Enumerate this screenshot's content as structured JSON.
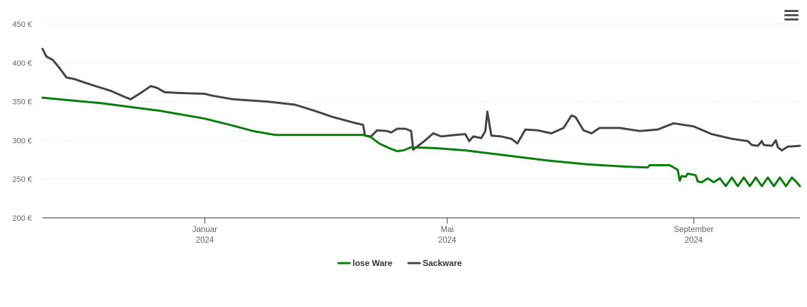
{
  "menu": {
    "icon": "hamburger-menu-icon"
  },
  "chart_data": {
    "type": "line",
    "title": "",
    "xlabel": "",
    "ylabel": "",
    "ylim": [
      200,
      450
    ],
    "y_ticks": [
      "200 €",
      "250 €",
      "300 €",
      "350 €",
      "400 €",
      "450 €"
    ],
    "y_tick_values": [
      200,
      250,
      300,
      350,
      400,
      450
    ],
    "x_range": [
      "2023-10-12",
      "2024-10-24"
    ],
    "x_ticks": [
      {
        "date": "2024-01-01",
        "label1": "Januar",
        "label2": "2024"
      },
      {
        "date": "2024-05-01",
        "label1": "Mai",
        "label2": "2024"
      },
      {
        "date": "2024-09-01",
        "label1": "September",
        "label2": "2024"
      }
    ],
    "grid": true,
    "legend": "bottom-center",
    "series": [
      {
        "name": "lose Ware",
        "color": "#0a7d0a",
        "points": [
          [
            "2023-10-12",
            355
          ],
          [
            "2023-11-10",
            348
          ],
          [
            "2023-12-10",
            338
          ],
          [
            "2024-01-01",
            328
          ],
          [
            "2024-01-15",
            319
          ],
          [
            "2024-01-25",
            312
          ],
          [
            "2024-02-05",
            307
          ],
          [
            "2024-02-25",
            307
          ],
          [
            "2024-03-10",
            307
          ],
          [
            "2024-03-20",
            307
          ],
          [
            "2024-03-24",
            304
          ],
          [
            "2024-03-28",
            296
          ],
          [
            "2024-04-02",
            290
          ],
          [
            "2024-04-06",
            286
          ],
          [
            "2024-04-09",
            287
          ],
          [
            "2024-04-13",
            291
          ],
          [
            "2024-04-25",
            290
          ],
          [
            "2024-05-10",
            287
          ],
          [
            "2024-06-01",
            280
          ],
          [
            "2024-06-20",
            274
          ],
          [
            "2024-07-10",
            269
          ],
          [
            "2024-07-30",
            266
          ],
          [
            "2024-08-09",
            265
          ],
          [
            "2024-08-10",
            268
          ],
          [
            "2024-08-20",
            268
          ],
          [
            "2024-08-24",
            262
          ],
          [
            "2024-08-25",
            248
          ],
          [
            "2024-08-26",
            254
          ],
          [
            "2024-08-28",
            253
          ],
          [
            "2024-08-29",
            257
          ],
          [
            "2024-09-02",
            255
          ],
          [
            "2024-09-03",
            247
          ],
          [
            "2024-09-05",
            246
          ],
          [
            "2024-09-08",
            251
          ],
          [
            "2024-09-11",
            246
          ],
          [
            "2024-09-14",
            251
          ],
          [
            "2024-09-17",
            241
          ],
          [
            "2024-09-20",
            252
          ],
          [
            "2024-09-23",
            241
          ],
          [
            "2024-09-26",
            252
          ],
          [
            "2024-09-29",
            241
          ],
          [
            "2024-10-02",
            252
          ],
          [
            "2024-10-05",
            241
          ],
          [
            "2024-10-08",
            252
          ],
          [
            "2024-10-11",
            241
          ],
          [
            "2024-10-14",
            252
          ],
          [
            "2024-10-17",
            241
          ],
          [
            "2024-10-20",
            252
          ],
          [
            "2024-10-22",
            247
          ],
          [
            "2024-10-24",
            241
          ]
        ]
      },
      {
        "name": "Sackware",
        "color": "#444444",
        "points": [
          [
            "2023-10-12",
            418
          ],
          [
            "2023-10-14",
            408
          ],
          [
            "2023-10-17",
            404
          ],
          [
            "2023-10-20",
            395
          ],
          [
            "2023-10-24",
            381
          ],
          [
            "2023-10-28",
            379
          ],
          [
            "2023-11-05",
            372
          ],
          [
            "2023-11-15",
            364
          ],
          [
            "2023-11-22",
            356
          ],
          [
            "2023-11-25",
            353
          ],
          [
            "2023-11-30",
            361
          ],
          [
            "2023-12-05",
            370
          ],
          [
            "2023-12-08",
            368
          ],
          [
            "2023-12-12",
            362
          ],
          [
            "2023-12-20",
            361
          ],
          [
            "2024-01-01",
            360
          ],
          [
            "2024-01-04",
            358
          ],
          [
            "2024-01-15",
            353
          ],
          [
            "2024-02-01",
            350
          ],
          [
            "2024-02-15",
            346
          ],
          [
            "2024-02-25",
            338
          ],
          [
            "2024-03-05",
            330
          ],
          [
            "2024-03-08",
            328
          ],
          [
            "2024-03-15",
            323
          ],
          [
            "2024-03-20",
            320
          ],
          [
            "2024-03-21",
            306
          ],
          [
            "2024-03-24",
            305
          ],
          [
            "2024-03-27",
            313
          ],
          [
            "2024-04-01",
            312
          ],
          [
            "2024-04-03",
            310
          ],
          [
            "2024-04-06",
            315
          ],
          [
            "2024-04-10",
            315
          ],
          [
            "2024-04-13",
            312
          ],
          [
            "2024-04-14",
            288
          ],
          [
            "2024-04-20",
            300
          ],
          [
            "2024-04-24",
            309
          ],
          [
            "2024-04-28",
            305
          ],
          [
            "2024-05-05",
            307
          ],
          [
            "2024-05-10",
            308
          ],
          [
            "2024-05-12",
            299
          ],
          [
            "2024-05-14",
            305
          ],
          [
            "2024-05-18",
            303
          ],
          [
            "2024-05-20",
            312
          ],
          [
            "2024-05-21",
            337
          ],
          [
            "2024-05-23",
            306
          ],
          [
            "2024-05-28",
            305
          ],
          [
            "2024-06-02",
            302
          ],
          [
            "2024-06-05",
            296
          ],
          [
            "2024-06-09",
            314
          ],
          [
            "2024-06-15",
            313
          ],
          [
            "2024-06-22",
            309
          ],
          [
            "2024-06-28",
            316
          ],
          [
            "2024-07-02",
            332
          ],
          [
            "2024-07-04",
            330
          ],
          [
            "2024-07-08",
            313
          ],
          [
            "2024-07-12",
            309
          ],
          [
            "2024-07-16",
            316
          ],
          [
            "2024-07-26",
            316
          ],
          [
            "2024-08-05",
            312
          ],
          [
            "2024-08-14",
            314
          ],
          [
            "2024-08-22",
            322
          ],
          [
            "2024-09-01",
            318
          ],
          [
            "2024-09-10",
            308
          ],
          [
            "2024-09-20",
            302
          ],
          [
            "2024-09-28",
            299
          ],
          [
            "2024-09-30",
            294
          ],
          [
            "2024-10-03",
            293
          ],
          [
            "2024-10-05",
            299
          ],
          [
            "2024-10-06",
            294
          ],
          [
            "2024-10-10",
            293
          ],
          [
            "2024-10-12",
            300
          ],
          [
            "2024-10-13",
            291
          ],
          [
            "2024-10-15",
            287
          ],
          [
            "2024-10-18",
            292
          ],
          [
            "2024-10-24",
            293
          ]
        ]
      }
    ]
  }
}
